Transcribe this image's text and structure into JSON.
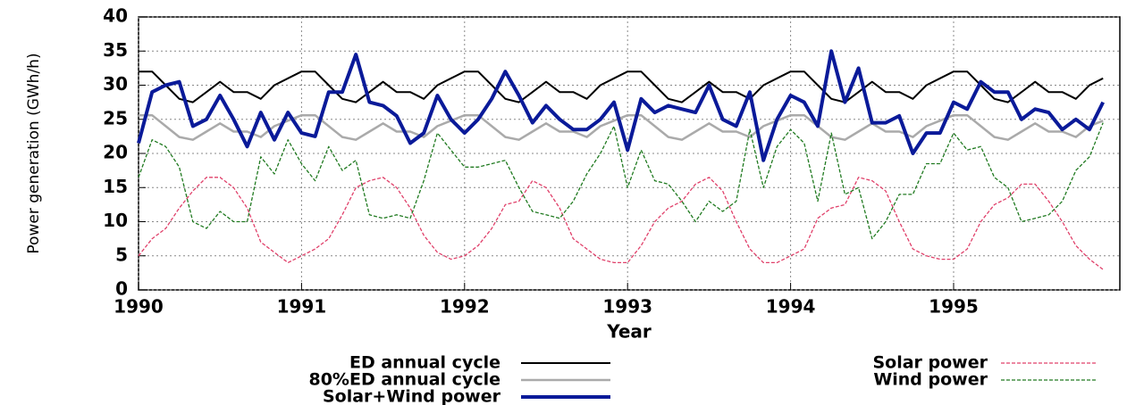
{
  "chart_data": {
    "type": "line",
    "y_label": "Power generation (GWh/h)",
    "x_label": "Year",
    "categories": [
      "1990",
      null,
      null,
      null,
      null,
      null,
      null,
      null,
      null,
      null,
      null,
      null,
      "1991",
      null,
      null,
      null,
      null,
      null,
      null,
      null,
      null,
      null,
      null,
      null,
      "1992",
      null,
      null,
      null,
      null,
      null,
      null,
      null,
      null,
      null,
      null,
      null,
      "1993",
      null,
      null,
      null,
      null,
      null,
      null,
      null,
      null,
      null,
      null,
      null,
      "1994",
      null,
      null,
      null,
      null,
      null,
      null,
      null,
      null,
      null,
      null,
      null,
      "1995",
      null,
      null,
      null,
      null,
      null,
      null,
      null,
      null,
      null,
      null,
      null
    ],
    "ylim": [
      0,
      40
    ],
    "yticks": [
      0,
      5,
      10,
      15,
      20,
      25,
      30,
      35,
      40
    ],
    "grid": true,
    "series": [
      {
        "name": "ED annual cycle",
        "color": "#000000",
        "line_width": 2,
        "dashed": false,
        "values": [
          32,
          32,
          30,
          28,
          27.5,
          29,
          30.5,
          29,
          29,
          28,
          30,
          31,
          32,
          32,
          30,
          28,
          27.5,
          29,
          30.5,
          29,
          29,
          28,
          30,
          31,
          32,
          32,
          30,
          28,
          27.5,
          29,
          30.5,
          29,
          29,
          28,
          30,
          31,
          32,
          32,
          30,
          28,
          27.5,
          29,
          30.5,
          29,
          29,
          28,
          30,
          31,
          32,
          32,
          30,
          28,
          27.5,
          29,
          30.5,
          29,
          29,
          28,
          30,
          31,
          32,
          32,
          30,
          28,
          27.5,
          29,
          30.5,
          29,
          29,
          28,
          30,
          31
        ]
      },
      {
        "name": "80%ED annual cycle",
        "color": "#aaaaaa",
        "line_width": 2.5,
        "dashed": false,
        "values": [
          25.6,
          25.6,
          24,
          22.4,
          22,
          23.2,
          24.4,
          23.2,
          23.2,
          22.4,
          24,
          24.8,
          25.6,
          25.6,
          24,
          22.4,
          22,
          23.2,
          24.4,
          23.2,
          23.2,
          22.4,
          24,
          24.8,
          25.6,
          25.6,
          24,
          22.4,
          22,
          23.2,
          24.4,
          23.2,
          23.2,
          22.4,
          24,
          24.8,
          25.6,
          25.6,
          24,
          22.4,
          22,
          23.2,
          24.4,
          23.2,
          23.2,
          22.4,
          24,
          24.8,
          25.6,
          25.6,
          24,
          22.4,
          22,
          23.2,
          24.4,
          23.2,
          23.2,
          22.4,
          24,
          24.8,
          25.6,
          25.6,
          24,
          22.4,
          22,
          23.2,
          24.4,
          23.2,
          23.2,
          22.4,
          24,
          24.8
        ]
      },
      {
        "name": "Solar+Wind power",
        "color": "#0a1a99",
        "line_width": 4,
        "dashed": false,
        "values": [
          21.5,
          29,
          30,
          30.5,
          24,
          25,
          28.5,
          25,
          21,
          26,
          22,
          26,
          23,
          22.5,
          29,
          29,
          34.5,
          27.5,
          27,
          25.5,
          21.5,
          23,
          28.5,
          25,
          23,
          25,
          28,
          32,
          28.5,
          24.5,
          27,
          25,
          23.5,
          23.5,
          25,
          27.5,
          20.5,
          28,
          26,
          27,
          26.5,
          26,
          30,
          25,
          24,
          29,
          19,
          25,
          28.5,
          27.5,
          24,
          35,
          27.5,
          32.5,
          24.5,
          24.5,
          25.5,
          20,
          23,
          23,
          27.5,
          26.5,
          30.5,
          29,
          29,
          25,
          26.5,
          26,
          23.5,
          25,
          23.5,
          27.5
        ]
      },
      {
        "name": "Solar power",
        "color": "#e0406a",
        "line_width": 1.3,
        "dashed": true,
        "values": [
          5,
          7.5,
          9,
          12,
          14.5,
          16.5,
          16.5,
          15,
          12,
          7,
          5.5,
          4,
          5,
          6,
          7.5,
          11,
          15,
          16,
          16.5,
          15,
          12,
          8,
          5.5,
          4.5,
          5,
          6.5,
          9,
          12.5,
          13,
          16,
          15,
          12,
          7.5,
          6,
          4.5,
          4,
          4,
          6.5,
          10,
          12,
          13,
          15.5,
          16.5,
          14.5,
          10,
          6,
          4,
          4,
          5,
          6,
          10.5,
          12,
          12.5,
          16.5,
          16,
          14.5,
          10,
          6,
          5,
          4.5,
          4.5,
          6,
          10,
          12.5,
          13.5,
          15.5,
          15.5,
          13,
          10,
          6.5,
          4.5,
          3
        ]
      },
      {
        "name": "Wind power",
        "color": "#207a20",
        "line_width": 1.3,
        "dashed": true,
        "values": [
          16.5,
          22,
          21,
          18,
          10,
          9,
          11.5,
          10,
          10,
          19.5,
          17,
          22,
          18.5,
          16,
          21,
          17.5,
          19,
          11,
          10.5,
          11,
          10.5,
          16,
          23,
          20.5,
          18,
          18,
          18.5,
          19,
          15,
          11.5,
          11,
          10.5,
          13,
          17,
          20,
          24,
          15,
          20.5,
          16,
          15.5,
          13,
          10,
          13,
          11.5,
          13,
          23.5,
          15,
          21,
          23.5,
          21.5,
          13,
          23,
          14,
          15,
          7.5,
          10,
          14,
          14,
          18.5,
          18.5,
          23,
          20.5,
          21,
          16.5,
          15,
          10,
          10.5,
          11,
          13,
          17.5,
          19.5,
          24.5
        ]
      }
    ]
  }
}
